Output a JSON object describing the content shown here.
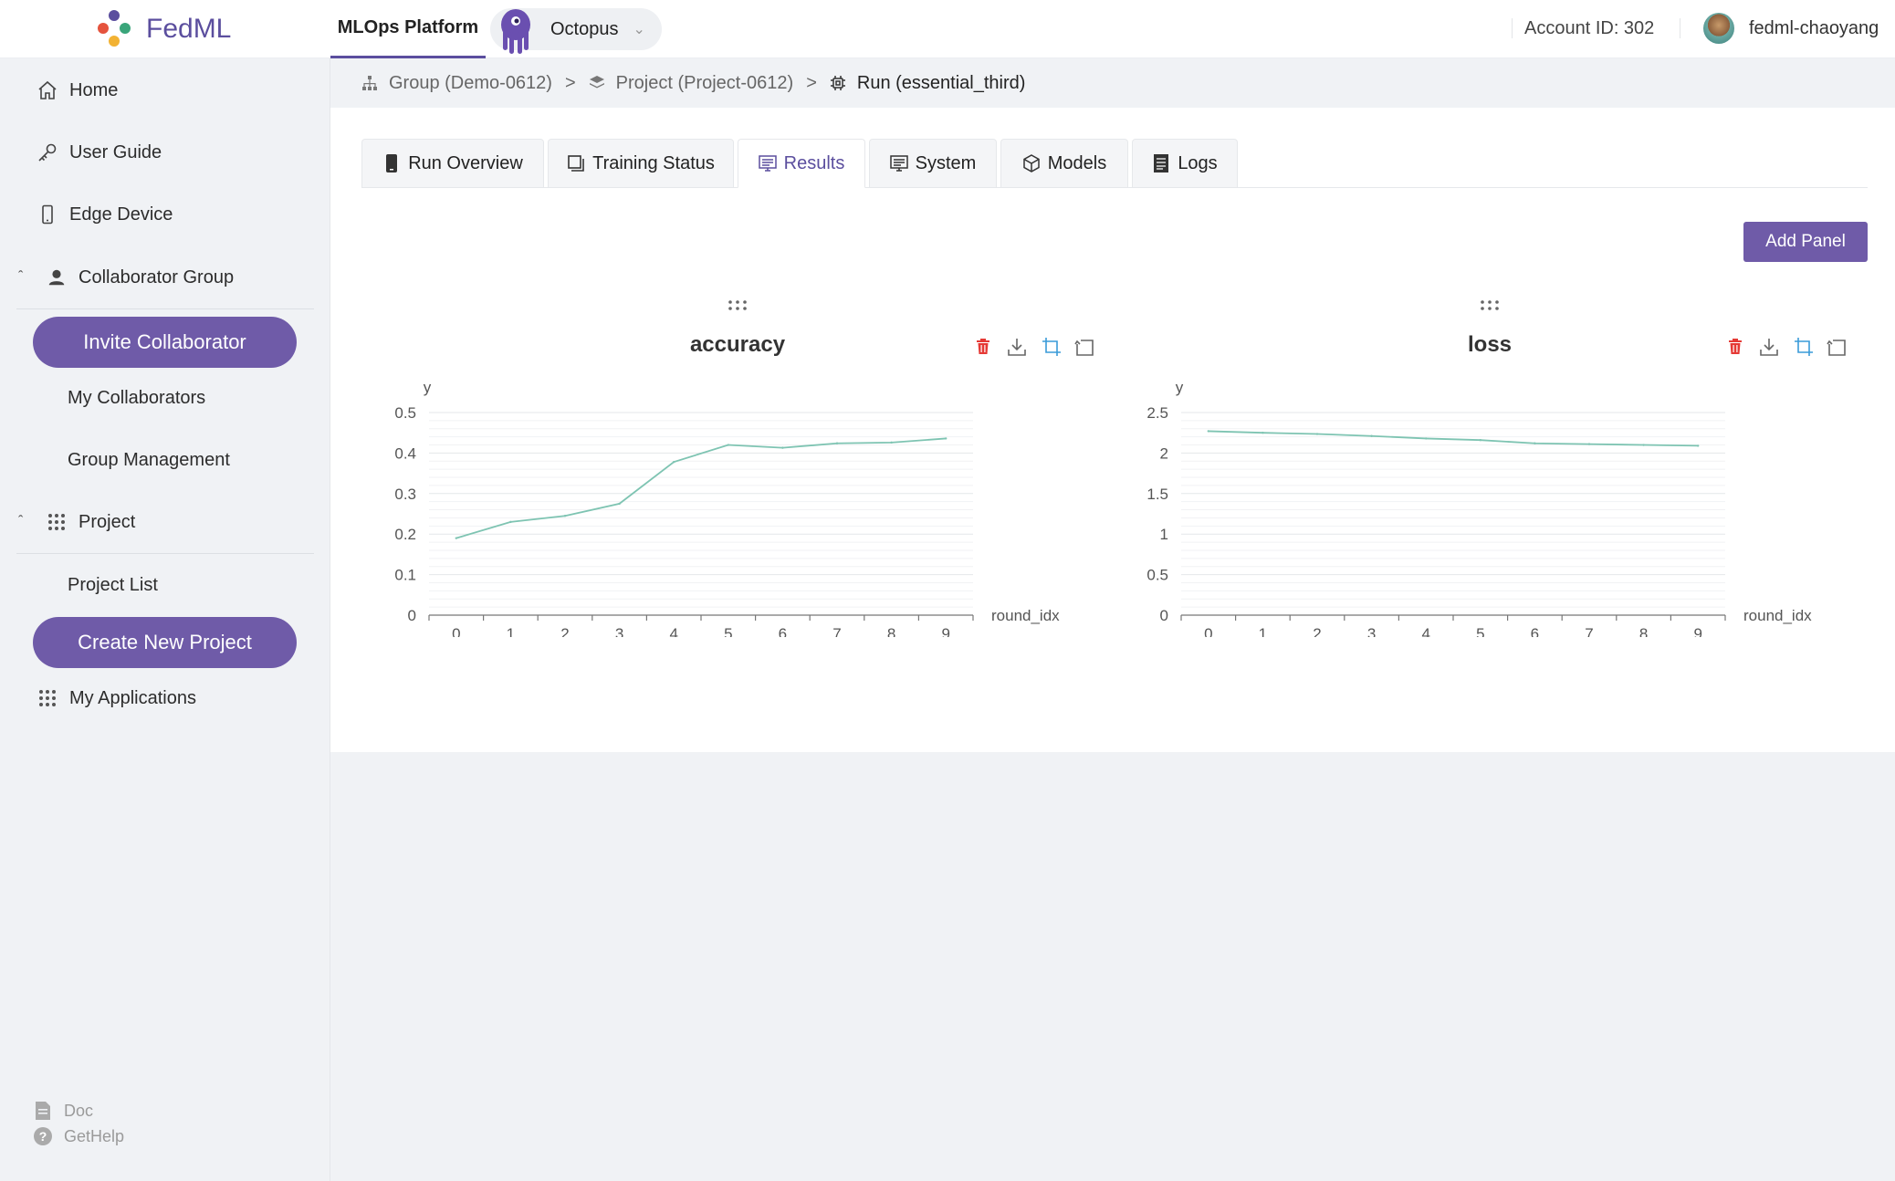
{
  "app": {
    "logo_text": "FedML",
    "nav_active": "MLOps Platform",
    "org_name": "Octopus",
    "account": "Account ID: 302",
    "username": "fedml-chaoyang"
  },
  "sidebar": {
    "home": "Home",
    "user_guide": "User Guide",
    "edge_device": "Edge Device",
    "collaborator_group": "Collaborator Group",
    "invite_collaborator": "Invite Collaborator",
    "my_collaborators": "My Collaborators",
    "group_management": "Group Management",
    "project": "Project",
    "project_list": "Project List",
    "create_new_project": "Create New Project",
    "my_applications": "My Applications",
    "doc": "Doc",
    "get_help": "GetHelp"
  },
  "breadcrumb": {
    "group": "Group (Demo-0612)",
    "project": "Project (Project-0612)",
    "run": "Run (essential_third)",
    "separator": ">"
  },
  "tabs": [
    "Run Overview",
    "Training Status",
    "Results",
    "System",
    "Models",
    "Logs"
  ],
  "active_tab": "Results",
  "add_panel": "Add Panel",
  "colors": {
    "accent": "#5b4e9e",
    "button": "#6f5ba8",
    "line": "#7ec4b2",
    "delete": "#e53935",
    "tool_blue": "#3a9bd9"
  },
  "chart_data": [
    {
      "type": "line",
      "title": "accuracy",
      "xlabel": "round_idx",
      "ylabel": "y",
      "x": [
        0,
        1,
        2,
        3,
        4,
        5,
        6,
        7,
        8,
        9
      ],
      "y": [
        0.19,
        0.23,
        0.245,
        0.275,
        0.378,
        0.42,
        0.413,
        0.424,
        0.426,
        0.436
      ],
      "yticks": [
        "0",
        "0.1",
        "0.2",
        "0.3",
        "0.4",
        "0.5"
      ],
      "ylim": [
        0,
        0.5
      ],
      "grid": true
    },
    {
      "type": "line",
      "title": "loss",
      "xlabel": "round_idx",
      "ylabel": "y",
      "x": [
        0,
        1,
        2,
        3,
        4,
        5,
        6,
        7,
        8,
        9
      ],
      "y": [
        2.27,
        2.25,
        2.235,
        2.21,
        2.18,
        2.16,
        2.12,
        2.11,
        2.1,
        2.09
      ],
      "yticks": [
        "0",
        "0.5",
        "1",
        "1.5",
        "2",
        "2.5"
      ],
      "ylim": [
        0,
        2.5
      ],
      "grid": true
    }
  ]
}
